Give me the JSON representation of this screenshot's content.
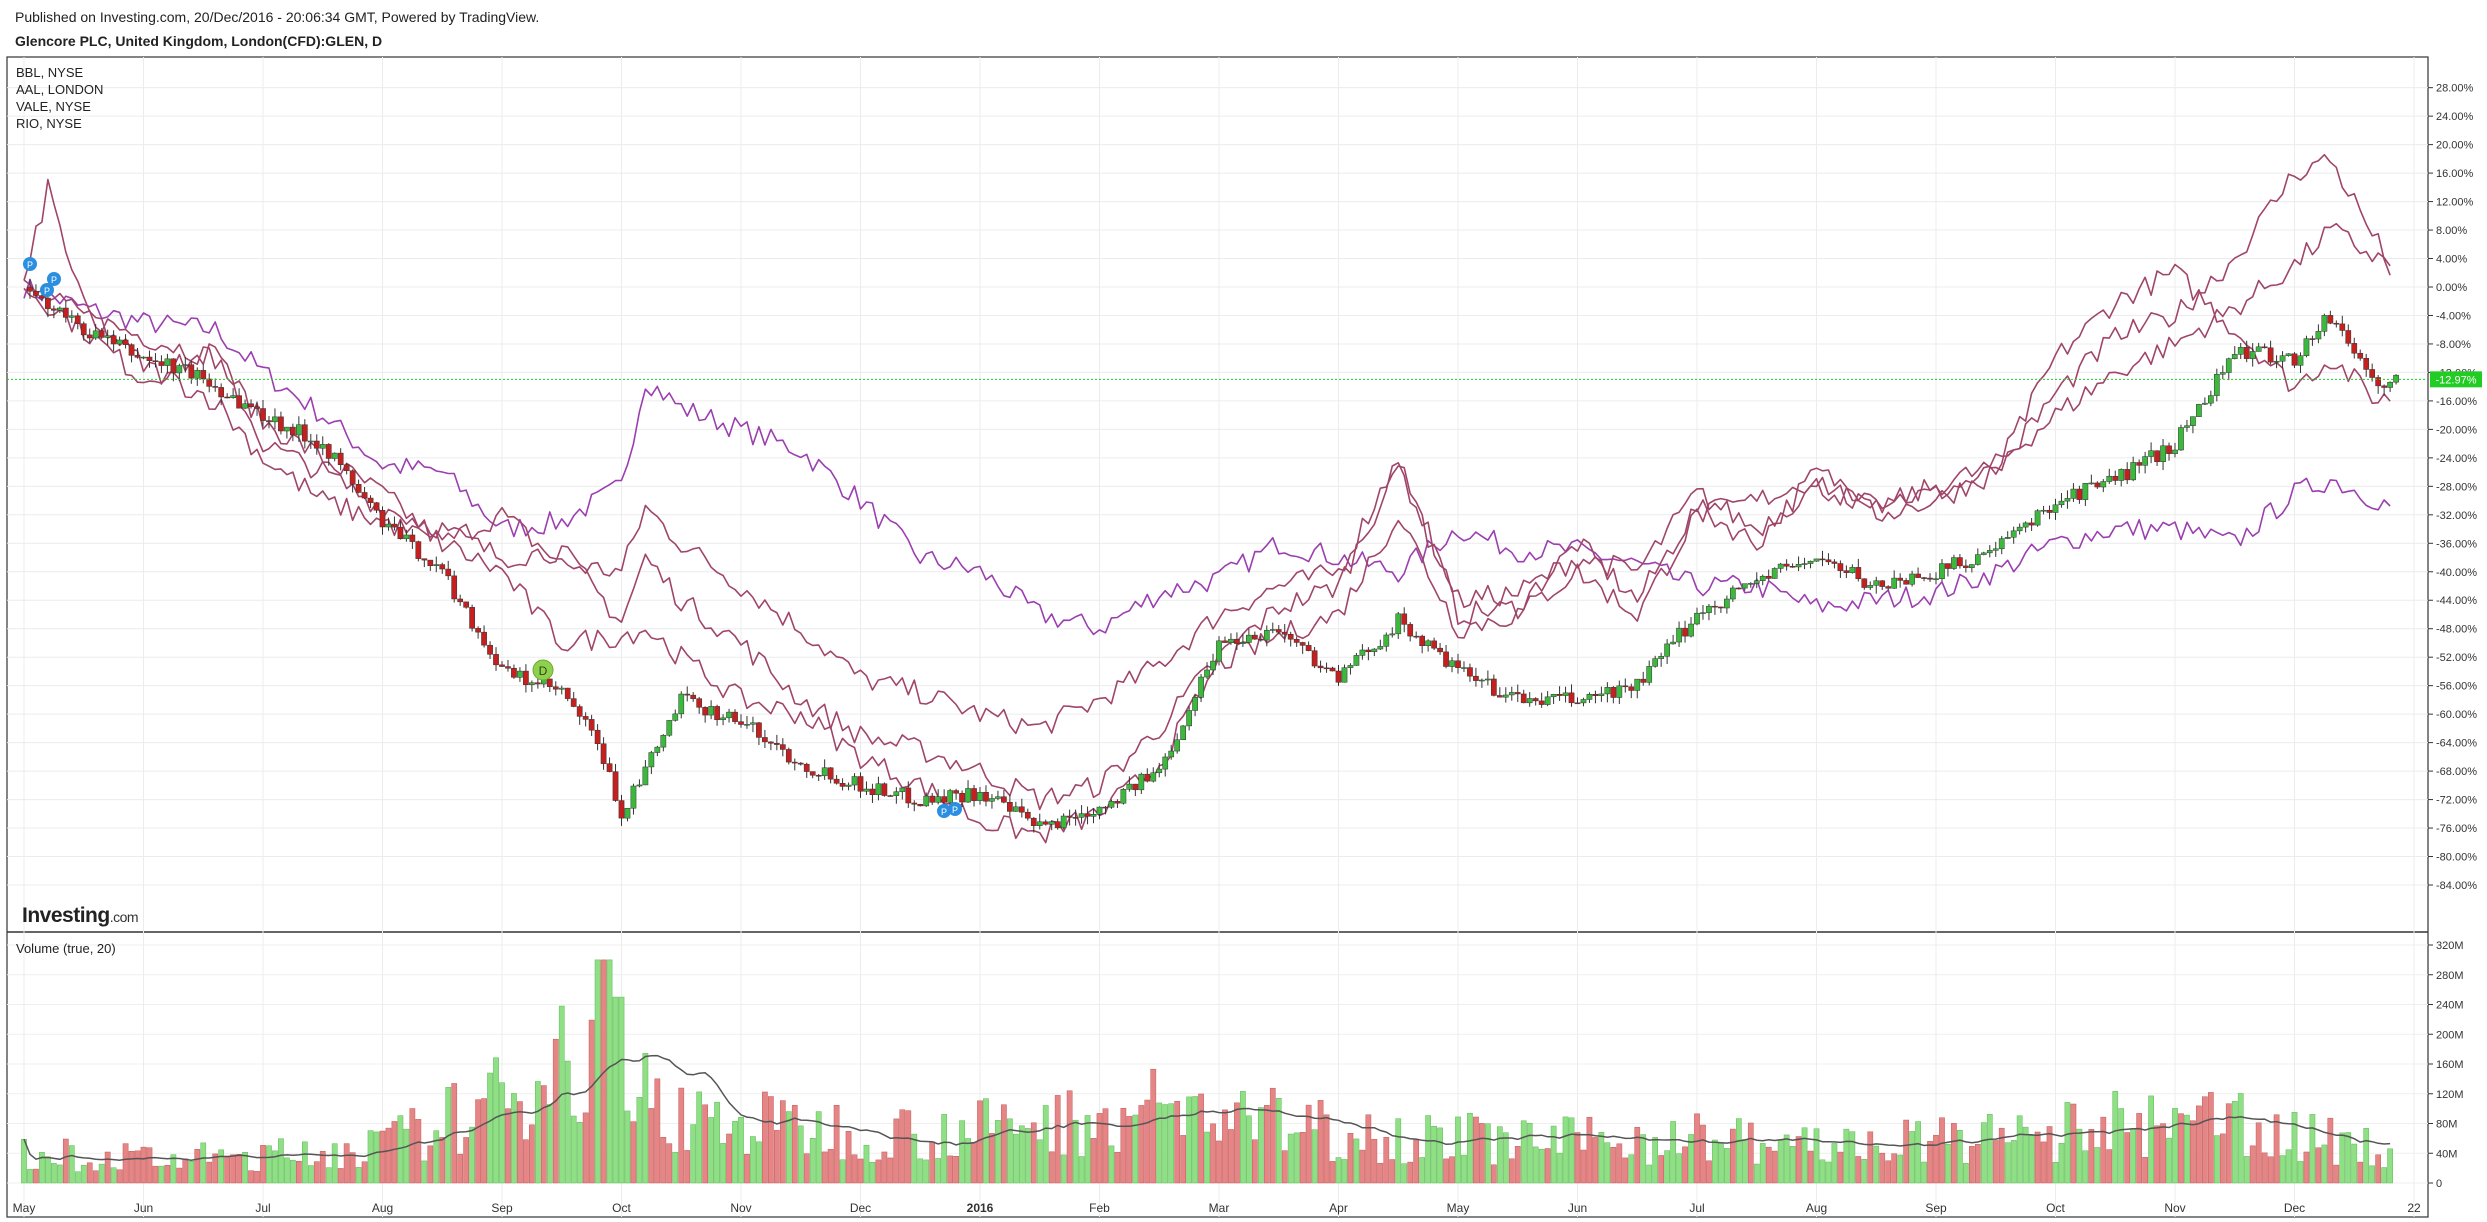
{
  "header": {
    "published": "Published on Investing.com, 20/Dec/2016 - 20:06:34 GMT, Powered by TradingView.",
    "title": "Glencore PLC, United Kingdom, London(CFD):GLEN, D"
  },
  "logo": {
    "text": "Investing",
    "suffix": ".com"
  },
  "colors": {
    "up": "#3cb93c",
    "down": "#c42020",
    "compare": "#a0456a",
    "compare2": "#9b3fb0",
    "vol_up": "#8fdf84",
    "vol_down": "#e58585",
    "vol_ma": "#555555",
    "price_line": "#22cc22"
  },
  "chart_data": [
    {
      "type": "candlestick",
      "series_label": "Glencore PLC",
      "compare_series": [
        "BBL, NYSE",
        "AAL, LONDON",
        "VALE, NYSE",
        "RIO, NYSE"
      ],
      "yaxis": {
        "unit": "%",
        "range": [
          -86,
          30
        ],
        "ticks": [
          "28.00%",
          "24.00%",
          "20.00%",
          "16.00%",
          "12.00%",
          "8.00%",
          "4.00%",
          "0.00%",
          "-4.00%",
          "-8.00%",
          "-12.00%",
          "-16.00%",
          "-20.00%",
          "-24.00%",
          "-28.00%",
          "-32.00%",
          "-36.00%",
          "-40.00%",
          "-44.00%",
          "-48.00%",
          "-52.00%",
          "-56.00%",
          "-60.00%",
          "-64.00%",
          "-68.00%",
          "-72.00%",
          "-76.00%",
          "-80.00%",
          "-84.00%"
        ]
      },
      "last_value_label": "-12.97%",
      "last_value": -12.97,
      "xaxis": {
        "labels": [
          "May",
          "Jun",
          "Jul",
          "Aug",
          "Sep",
          "Oct",
          "Nov",
          "Dec",
          "2016",
          "Feb",
          "Mar",
          "Apr",
          "May",
          "Jun",
          "Jul",
          "Aug",
          "Sep",
          "Oct",
          "Nov",
          "Dec",
          "22"
        ],
        "label_pos": [
          0,
          1,
          2,
          3,
          4,
          5,
          6,
          7,
          8,
          9,
          10,
          11,
          12,
          13,
          14,
          15,
          16,
          17,
          18,
          19,
          20
        ]
      },
      "glen_keypoints": [
        [
          0,
          0
        ],
        [
          0.5,
          -6
        ],
        [
          1,
          -10
        ],
        [
          1.4,
          -12
        ],
        [
          2,
          -18
        ],
        [
          2.5,
          -22
        ],
        [
          3,
          -33
        ],
        [
          3.5,
          -40
        ],
        [
          4,
          -54
        ],
        [
          4.5,
          -57
        ],
        [
          4.8,
          -64
        ],
        [
          5,
          -74
        ],
        [
          5.2,
          -68
        ],
        [
          5.5,
          -58
        ],
        [
          6,
          -61
        ],
        [
          6.5,
          -67
        ],
        [
          7,
          -70
        ],
        [
          7.5,
          -72
        ],
        [
          8,
          -71
        ],
        [
          8.5,
          -76
        ],
        [
          9,
          -73
        ],
        [
          9.5,
          -68
        ],
        [
          10,
          -50
        ],
        [
          10.5,
          -48
        ],
        [
          11,
          -55
        ],
        [
          11.5,
          -47
        ],
        [
          12,
          -54
        ],
        [
          12.5,
          -58
        ],
        [
          13,
          -58
        ],
        [
          13.5,
          -56
        ],
        [
          14,
          -46
        ],
        [
          14.5,
          -41
        ],
        [
          15,
          -38
        ],
        [
          15.5,
          -42
        ],
        [
          16,
          -40
        ],
        [
          16.5,
          -37
        ],
        [
          17,
          -30
        ],
        [
          17.5,
          -27
        ],
        [
          18,
          -22
        ],
        [
          18.5,
          -9
        ],
        [
          19,
          -10
        ],
        [
          19.3,
          -4
        ],
        [
          19.7,
          -14
        ],
        [
          19.85,
          -12.97
        ]
      ],
      "compare_keypoints": [
        [
          [
            0,
            0
          ],
          [
            0.5,
            -3
          ],
          [
            1,
            -5
          ],
          [
            1.6,
            -6
          ],
          [
            2,
            -12
          ],
          [
            2.5,
            -18
          ],
          [
            3,
            -25
          ],
          [
            3.5,
            -26
          ],
          [
            4,
            -34
          ],
          [
            4.5,
            -33
          ],
          [
            5,
            -28
          ],
          [
            5.2,
            -13
          ],
          [
            5.5,
            -17
          ],
          [
            6,
            -20
          ],
          [
            6.5,
            -23
          ],
          [
            7,
            -30
          ],
          [
            7.5,
            -38
          ],
          [
            8,
            -40
          ],
          [
            8.5,
            -46
          ],
          [
            9,
            -48
          ],
          [
            9.5,
            -43
          ],
          [
            10,
            -41
          ],
          [
            10.5,
            -36
          ],
          [
            11,
            -38
          ],
          [
            11.5,
            -40
          ],
          [
            12,
            -34
          ],
          [
            12.5,
            -37
          ],
          [
            13,
            -37
          ],
          [
            13.5,
            -39
          ],
          [
            14,
            -42
          ],
          [
            14.5,
            -42
          ],
          [
            15,
            -45
          ],
          [
            15.5,
            -44
          ],
          [
            16,
            -43
          ],
          [
            16.5,
            -40
          ],
          [
            17,
            -36
          ],
          [
            17.5,
            -34
          ],
          [
            18,
            -34
          ],
          [
            18.5,
            -36
          ],
          [
            19,
            -29
          ],
          [
            19.3,
            -27
          ],
          [
            19.7,
            -30
          ],
          [
            19.85,
            -31
          ]
        ],
        [
          [
            0,
            0
          ],
          [
            0.5,
            -4
          ],
          [
            1,
            -7
          ],
          [
            1.6,
            -10
          ],
          [
            2,
            -19
          ],
          [
            2.5,
            -24
          ],
          [
            3,
            -29
          ],
          [
            3.5,
            -36
          ],
          [
            4,
            -32
          ],
          [
            4.5,
            -39
          ],
          [
            5,
            -40
          ],
          [
            5.2,
            -31
          ],
          [
            5.5,
            -36
          ],
          [
            6,
            -42
          ],
          [
            6.5,
            -48
          ],
          [
            7,
            -55
          ],
          [
            7.5,
            -57
          ],
          [
            8,
            -60
          ],
          [
            8.5,
            -62
          ],
          [
            9,
            -58
          ],
          [
            9.5,
            -53
          ],
          [
            10,
            -46
          ],
          [
            10.5,
            -42
          ],
          [
            11,
            -40
          ],
          [
            11.5,
            -24
          ],
          [
            12,
            -46
          ],
          [
            12.5,
            -45
          ],
          [
            13,
            -36
          ],
          [
            13.5,
            -44
          ],
          [
            14,
            -31
          ],
          [
            14.5,
            -36
          ],
          [
            15,
            -26
          ],
          [
            15.5,
            -30
          ],
          [
            16,
            -29
          ],
          [
            16.5,
            -26
          ],
          [
            17,
            -10
          ],
          [
            17.5,
            -2
          ],
          [
            18,
            2
          ],
          [
            18.5,
            -6
          ],
          [
            19,
            -14
          ],
          [
            19.3,
            -10
          ],
          [
            19.7,
            -16
          ],
          [
            19.85,
            -15
          ]
        ],
        [
          [
            0,
            0
          ],
          [
            0.5,
            -6
          ],
          [
            1,
            -13
          ],
          [
            1.6,
            -9
          ],
          [
            2,
            -22
          ],
          [
            2.5,
            -26
          ],
          [
            3,
            -31
          ],
          [
            3.5,
            -34
          ],
          [
            4,
            -38
          ],
          [
            4.5,
            -37
          ],
          [
            5,
            -47
          ],
          [
            5.2,
            -38
          ],
          [
            5.5,
            -44
          ],
          [
            6,
            -50
          ],
          [
            6.5,
            -58
          ],
          [
            7,
            -63
          ],
          [
            7.5,
            -65
          ],
          [
            8,
            -68
          ],
          [
            8.5,
            -72
          ],
          [
            9,
            -70
          ],
          [
            9.5,
            -62
          ],
          [
            10,
            -52
          ],
          [
            10.5,
            -45
          ],
          [
            11,
            -42
          ],
          [
            11.5,
            -25
          ],
          [
            12,
            -44
          ],
          [
            12.5,
            -43
          ],
          [
            13,
            -38
          ],
          [
            13.5,
            -40
          ],
          [
            14,
            -29
          ],
          [
            14.5,
            -34
          ],
          [
            15,
            -28
          ],
          [
            15.5,
            -31
          ],
          [
            16,
            -28
          ],
          [
            16.5,
            -25
          ],
          [
            17,
            -18
          ],
          [
            17.5,
            -12
          ],
          [
            18,
            -8
          ],
          [
            18.5,
            -3
          ],
          [
            19,
            3
          ],
          [
            19.3,
            8
          ],
          [
            19.7,
            4
          ],
          [
            19.85,
            3
          ]
        ],
        [
          [
            0,
            0
          ],
          [
            0.2,
            14
          ],
          [
            0.5,
            -3
          ],
          [
            1,
            -11
          ],
          [
            1.6,
            -16
          ],
          [
            2,
            -24
          ],
          [
            2.5,
            -30
          ],
          [
            3,
            -33
          ],
          [
            3.5,
            -36
          ],
          [
            4,
            -40
          ],
          [
            4.5,
            -50
          ],
          [
            5,
            -49
          ],
          [
            5.2,
            -48
          ],
          [
            5.5,
            -52
          ],
          [
            6,
            -58
          ],
          [
            6.5,
            -60
          ],
          [
            7,
            -66
          ],
          [
            7.5,
            -70
          ],
          [
            8,
            -75
          ],
          [
            8.5,
            -77
          ],
          [
            9,
            -74
          ],
          [
            9.5,
            -67
          ],
          [
            10,
            -53
          ],
          [
            10.5,
            -49
          ],
          [
            11,
            -46
          ],
          [
            11.5,
            -32
          ],
          [
            12,
            -48
          ],
          [
            12.5,
            -46
          ],
          [
            13,
            -40
          ],
          [
            13.5,
            -46
          ],
          [
            14,
            -32
          ],
          [
            14.5,
            -30
          ],
          [
            15,
            -27
          ],
          [
            15.5,
            -32
          ],
          [
            16,
            -30
          ],
          [
            16.5,
            -26
          ],
          [
            17,
            -15
          ],
          [
            17.5,
            -7
          ],
          [
            18,
            -4
          ],
          [
            18.5,
            4
          ],
          [
            19,
            16
          ],
          [
            19.3,
            18
          ],
          [
            19.7,
            6
          ],
          [
            19.85,
            1
          ]
        ]
      ]
    },
    {
      "type": "bar",
      "title": "Volume (true, 20)",
      "yaxis": {
        "range": [
          -15,
          330
        ],
        "ticks": [
          "320M",
          "280M",
          "240M",
          "200M",
          "160M",
          "120M",
          "80M",
          "40M",
          "0"
        ],
        "tick_values": [
          320,
          280,
          240,
          200,
          160,
          120,
          80,
          40,
          0
        ]
      },
      "volume_keypoints": [
        [
          0,
          40
        ],
        [
          1,
          32
        ],
        [
          2,
          36
        ],
        [
          3,
          50
        ],
        [
          3.5,
          80
        ],
        [
          4,
          110
        ],
        [
          4.5,
          180
        ],
        [
          5,
          130
        ],
        [
          5.3,
          110
        ],
        [
          5.5,
          90
        ],
        [
          6,
          80
        ],
        [
          6.5,
          75
        ],
        [
          7,
          70
        ],
        [
          7.5,
          68
        ],
        [
          8,
          72
        ],
        [
          8.5,
          78
        ],
        [
          9,
          90
        ],
        [
          9.5,
          100
        ],
        [
          10,
          92
        ],
        [
          10.5,
          80
        ],
        [
          11,
          70
        ],
        [
          11.5,
          65
        ],
        [
          12,
          60
        ],
        [
          12.5,
          58
        ],
        [
          13,
          55
        ],
        [
          13.5,
          60
        ],
        [
          14,
          62
        ],
        [
          14.5,
          55
        ],
        [
          15,
          50
        ],
        [
          15.5,
          52
        ],
        [
          16,
          55
        ],
        [
          16.5,
          60
        ],
        [
          17,
          65
        ],
        [
          17.5,
          80
        ],
        [
          18,
          70
        ],
        [
          18.5,
          90
        ],
        [
          19,
          60
        ],
        [
          19.5,
          55
        ],
        [
          19.85,
          40
        ]
      ]
    }
  ]
}
